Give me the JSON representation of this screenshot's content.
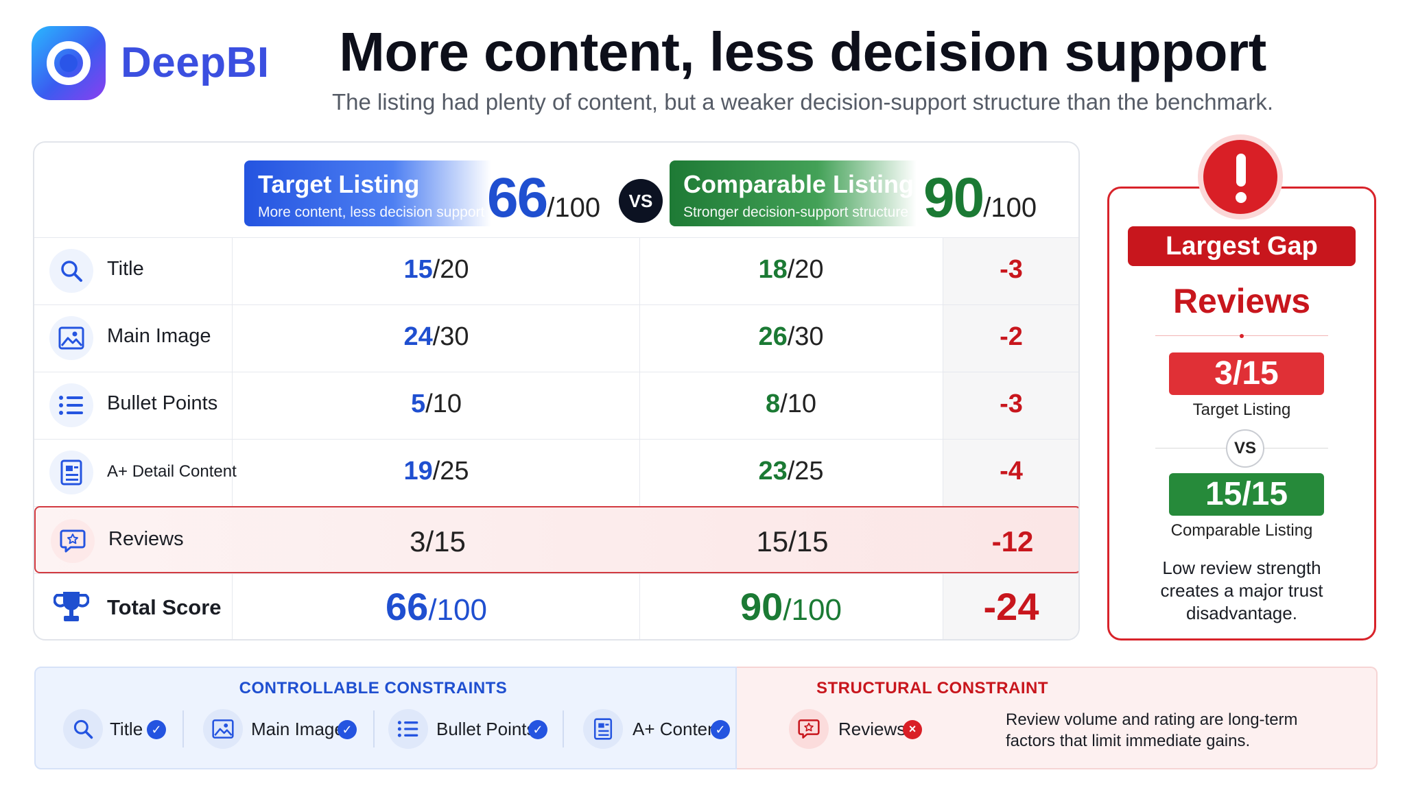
{
  "brand": {
    "name": "DeepBI"
  },
  "header": {
    "title": "More content, less decision support",
    "subtitle": "The listing had plenty of content, but a weaker decision-support structure than the benchmark."
  },
  "comparison": {
    "target": {
      "title": "Target Listing",
      "subtitle": "More content, less decision support",
      "score": "66",
      "out_of": "/100",
      "color": "#1f4fd0"
    },
    "vs_label": "VS",
    "comparable": {
      "title": "Comparable Listing",
      "subtitle": "Stronger decision-support structure",
      "score": "90",
      "out_of": "/100",
      "color": "#1b7a34"
    },
    "rows": [
      {
        "icon": "search-icon",
        "label": "Title",
        "target": "15",
        "target_max": "/20",
        "comparable": "18",
        "comparable_max": "/20",
        "delta": "-3"
      },
      {
        "icon": "image-icon",
        "label": "Main Image",
        "target": "24",
        "target_max": "/30",
        "comparable": "26",
        "comparable_max": "/30",
        "delta": "-2"
      },
      {
        "icon": "list-icon",
        "label": "Bullet Points",
        "target": "5",
        "target_max": "/10",
        "comparable": "8",
        "comparable_max": "/10",
        "delta": "-3"
      },
      {
        "icon": "document-icon",
        "label": "A+ Detail Content",
        "target": "19",
        "target_max": "/25",
        "comparable": "23",
        "comparable_max": "/25",
        "delta": "-4"
      },
      {
        "icon": "review-star-icon",
        "label": "Reviews",
        "target": "3/15",
        "comparable": "15/15",
        "delta": "-12",
        "highlighted": true
      }
    ],
    "total": {
      "icon": "trophy-icon",
      "label": "Total Score",
      "target": "66",
      "target_max": "/100",
      "comparable": "90",
      "comparable_max": "/100",
      "delta": "-24"
    }
  },
  "largest_gap": {
    "badge": "Largest Gap",
    "metric": "Reviews",
    "target_score": "3/15",
    "target_label": "Target Listing",
    "vs_label": "VS",
    "comparable_score": "15/15",
    "comparable_label": "Comparable Listing",
    "note": "Low review strength creates a major trust disadvantage.",
    "color": "#c8161d"
  },
  "constraints": {
    "controllable": {
      "title": "CONTROLLABLE CONSTRAINTS",
      "items": [
        {
          "icon": "search-icon",
          "label": "Title",
          "status": "check"
        },
        {
          "icon": "image-icon",
          "label": "Main Image",
          "status": "check"
        },
        {
          "icon": "list-icon",
          "label": "Bullet Points",
          "status": "check"
        },
        {
          "icon": "document-icon",
          "label": "A+ Content",
          "status": "check"
        }
      ]
    },
    "structural": {
      "title": "STRUCTURAL CONSTRAINT",
      "item": {
        "icon": "review-star-icon",
        "label": "Reviews",
        "status": "x"
      },
      "note": "Review volume and rating are long-term factors that limit immediate gains."
    }
  }
}
